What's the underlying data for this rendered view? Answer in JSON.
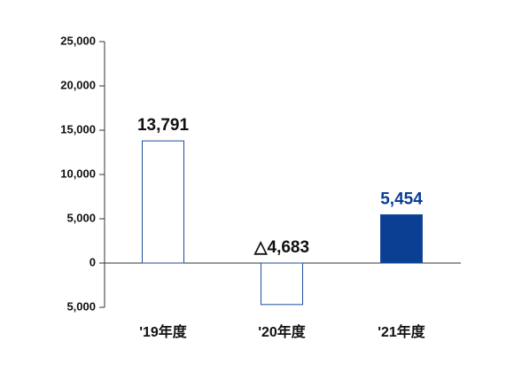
{
  "chart_data": {
    "type": "bar",
    "categories": [
      "'19年度",
      "'20年度",
      "'21年度"
    ],
    "values": [
      13791,
      -4683,
      5454
    ],
    "value_labels": [
      "13,791",
      "△4,683",
      "5,454"
    ],
    "bar_fills": [
      "#ffffff",
      "#ffffff",
      "#0b3f94"
    ],
    "edge_color": "#1f4e9a",
    "value_label_colors": [
      "#111111",
      "#111111",
      "#0b3f94"
    ],
    "ylim": [
      -5000,
      25000
    ],
    "yticks": [
      {
        "value": -5000,
        "label": "5,000"
      },
      0,
      {
        "value": 5000,
        "label": "5,000"
      },
      {
        "value": 10000,
        "label": "10,000"
      },
      {
        "value": 15000,
        "label": "15,000"
      },
      {
        "value": 20000,
        "label": "20,000"
      },
      {
        "value": 25000,
        "label": "25,000"
      }
    ]
  }
}
